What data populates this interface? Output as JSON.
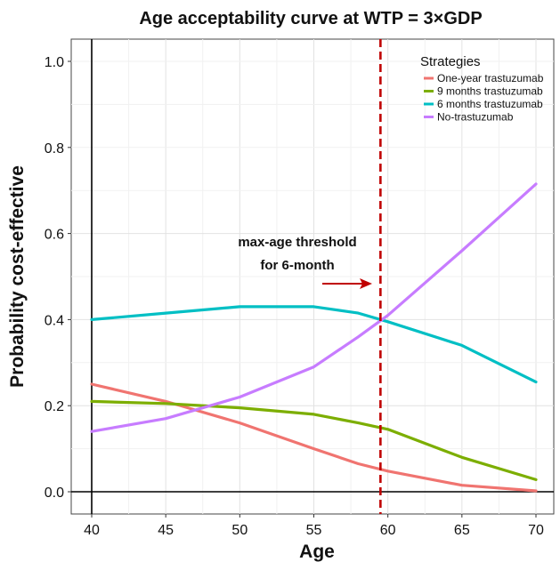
{
  "chart_data": {
    "type": "line",
    "title": "Age acceptability curve at WTP = 3×GDP",
    "xlabel": "Age",
    "ylabel": "Probability cost-effective",
    "xlim": [
      40,
      70
    ],
    "ylim": [
      0,
      1.0
    ],
    "x_ticks": [
      40,
      45,
      50,
      55,
      60,
      65,
      70
    ],
    "y_ticks": [
      0.0,
      0.2,
      0.4,
      0.6,
      0.8,
      1.0
    ],
    "y_tick_labels": [
      "0.0",
      "0.2",
      "0.4",
      "0.6",
      "0.8",
      "1.0"
    ],
    "grid": true,
    "legend": {
      "title": "Strategies",
      "placement": "top-right"
    },
    "series": [
      {
        "name": "One-year trastuzumab",
        "color": "#F07470",
        "x": [
          40,
          45,
          50,
          55,
          58,
          60,
          65,
          70
        ],
        "y": [
          0.25,
          0.21,
          0.16,
          0.1,
          0.065,
          0.048,
          0.015,
          0.002
        ]
      },
      {
        "name": "9 months trastuzumab",
        "color": "#7CAE00",
        "x": [
          40,
          45,
          50,
          55,
          58,
          60,
          65,
          70
        ],
        "y": [
          0.21,
          0.205,
          0.195,
          0.18,
          0.16,
          0.145,
          0.08,
          0.028
        ]
      },
      {
        "name": "6 months trastuzumab",
        "color": "#00BFC4",
        "x": [
          40,
          45,
          50,
          55,
          58,
          60,
          65,
          70
        ],
        "y": [
          0.4,
          0.415,
          0.43,
          0.43,
          0.415,
          0.395,
          0.34,
          0.255
        ]
      },
      {
        "name": "No-trastuzumab",
        "color": "#C77CFF",
        "x": [
          40,
          45,
          50,
          55,
          58,
          60,
          65,
          70
        ],
        "y": [
          0.14,
          0.17,
          0.22,
          0.29,
          0.36,
          0.41,
          0.56,
          0.715
        ]
      }
    ],
    "reference_line": {
      "orientation": "vertical",
      "x": 59.5,
      "color": "#C00000",
      "style": "dashed"
    },
    "annotation": {
      "lines": [
        "max-age threshold",
        "for 6-month"
      ],
      "arrow_color": "#C00000"
    }
  }
}
